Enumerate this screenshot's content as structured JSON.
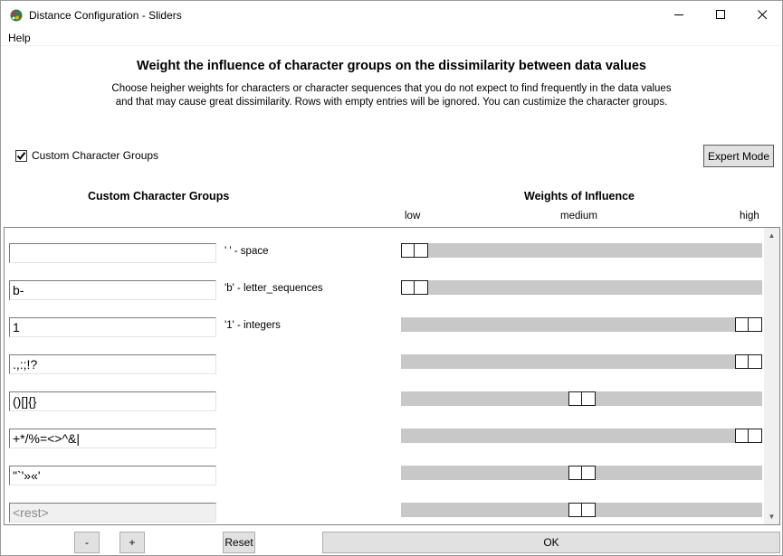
{
  "window": {
    "title": "Distance Configuration - Sliders",
    "controls": {
      "minimize": "—",
      "maximize": "☐",
      "close": "✕"
    }
  },
  "menu": {
    "items": [
      "Help"
    ]
  },
  "header": {
    "title": "Weight the influence of character groups on the dissimilarity between data values",
    "description_line1": "Choose heigher weights for characters or character sequences that you do not expect to find frequently in the data values",
    "description_line2": "and that may cause great dissimilarity. Rows with empty entries will be ignored. You can custimize the character groups."
  },
  "options": {
    "custom_groups_checkbox": {
      "label": "Custom Character Groups",
      "checked": true,
      "mark": "✓"
    },
    "expert_mode_label": "Expert Mode"
  },
  "columns": {
    "groups_header": "Custom Character Groups",
    "weights_header": "Weights of Influence",
    "scale": {
      "low": "low",
      "medium": "medium",
      "high": "high"
    }
  },
  "rows": [
    {
      "value": "",
      "label": "' ' - space",
      "weight": 0.0,
      "disabled": false
    },
    {
      "value": "b-",
      "label": "'b' - letter_sequences",
      "weight": 0.0,
      "disabled": false
    },
    {
      "value": "1",
      "label": "'1' - integers",
      "weight": 1.0,
      "disabled": false
    },
    {
      "value": ".,:;!?",
      "label": "",
      "weight": 1.0,
      "disabled": false
    },
    {
      "value": "()[]{}",
      "label": "",
      "weight": 0.5,
      "disabled": false
    },
    {
      "value": "+*/%=<>^&|",
      "label": "",
      "weight": 1.0,
      "disabled": false
    },
    {
      "value": "\"`'»«'",
      "label": "",
      "weight": 0.5,
      "disabled": false
    },
    {
      "value": "<rest>",
      "label": "",
      "weight": 0.5,
      "disabled": true
    }
  ],
  "footer": {
    "minus_label": "-",
    "plus_label": "+",
    "reset_label": "Reset",
    "ok_label": "OK"
  },
  "icons": {
    "app": "app-icon",
    "scroll_up": "▲",
    "scroll_down": "▼"
  }
}
